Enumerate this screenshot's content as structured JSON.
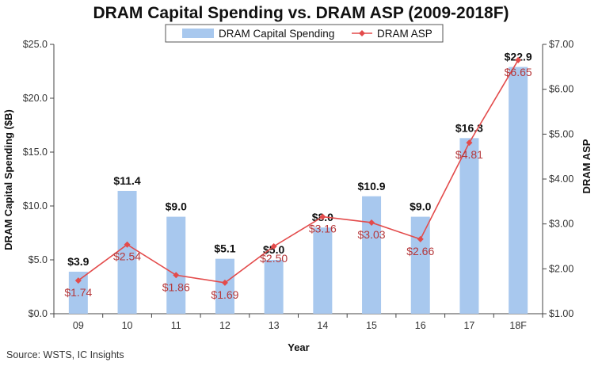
{
  "chart_data": {
    "type": "bar+line",
    "title": "DRAM Capital Spending vs. DRAM ASP (2009-2018F)",
    "xlabel": "Year",
    "ylabel_left": "DRAM Capital Spending ($B)",
    "ylabel_right": "DRAM ASP",
    "categories": [
      "09",
      "10",
      "11",
      "12",
      "13",
      "14",
      "15",
      "16",
      "17",
      "18F"
    ],
    "ylim_left": [
      0,
      25
    ],
    "yticks_left": [
      "$0.0",
      "$5.0",
      "$10.0",
      "$15.0",
      "$20.0",
      "$25.0"
    ],
    "ylim_right": [
      1,
      7
    ],
    "yticks_right": [
      "$1.00",
      "$2.00",
      "$3.00",
      "$4.00",
      "$5.00",
      "$6.00",
      "$7.00"
    ],
    "legend_position": "top-center",
    "grid": false,
    "series": [
      {
        "name": "DRAM Capital Spending",
        "kind": "bar",
        "axis": "left",
        "color": "#a8c8ee",
        "values": [
          3.9,
          11.4,
          9.0,
          5.1,
          5.0,
          8.0,
          10.9,
          9.0,
          16.3,
          22.9
        ],
        "labels": [
          "$3.9",
          "$11.4",
          "$9.0",
          "$5.1",
          "$5.0",
          "$8.0",
          "$10.9",
          "$9.0",
          "$16.3",
          "$22.9"
        ]
      },
      {
        "name": "DRAM ASP",
        "kind": "line",
        "axis": "right",
        "color": "#e34b4b",
        "label_color": "#b5373a",
        "values": [
          1.74,
          2.54,
          1.86,
          1.69,
          2.5,
          3.16,
          3.03,
          2.66,
          4.81,
          6.65
        ],
        "labels": [
          "$1.74",
          "$2.54",
          "$1.86",
          "$1.69",
          "$2.50",
          "$3.16",
          "$3.03",
          "$2.66",
          "$4.81",
          "$6.65"
        ]
      }
    ]
  },
  "source": "Source: WSTS, IC Insights"
}
